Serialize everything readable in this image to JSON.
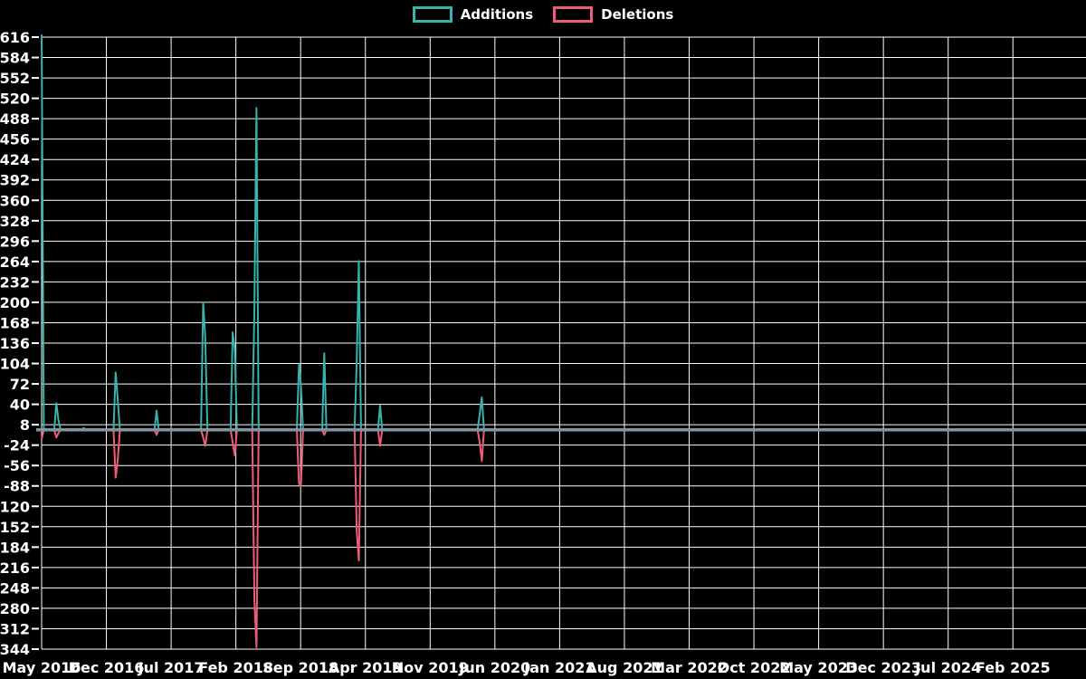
{
  "legend": {
    "items": [
      {
        "label": "Additions",
        "color": "#35b3ac"
      },
      {
        "label": "Deletions",
        "color": "#f05c78"
      }
    ]
  },
  "chart_data": {
    "type": "line",
    "title": "",
    "x_axis": {
      "tick_labels": [
        "May 2016",
        "Dec 2016",
        "Jul 2017",
        "Feb 2018",
        "Sep 2018",
        "Apr 2019",
        "Nov 2019",
        "Jun 2020",
        "Jan 2021",
        "Aug 2021",
        "Mar 2022",
        "Oct 2022",
        "May 2023",
        "Dec 2023",
        "Jul 2024",
        "Feb 2025"
      ],
      "start_month": "2016-05",
      "months_per_tick": 7
    },
    "y_axis": {
      "min": -344,
      "max": 616,
      "tick_step": 32,
      "ticks": [
        616,
        584,
        552,
        520,
        488,
        456,
        424,
        392,
        360,
        328,
        296,
        264,
        232,
        200,
        168,
        136,
        104,
        72,
        40,
        8,
        -24,
        -56,
        -88,
        -120,
        -152,
        -184,
        -216,
        -248,
        -280,
        -312,
        -344
      ]
    },
    "series": [
      {
        "name": "Additions",
        "color": "#35b3ac"
      },
      {
        "name": "Deletions",
        "color": "#f05c78"
      }
    ],
    "baseline": 0,
    "weekly_points_note": "weeks not listed are 0 additions / 0 deletions",
    "weekly_points": [
      {
        "date": "2016-05-01",
        "additions": 620,
        "deletions": -15
      },
      {
        "date": "2016-06-19",
        "additions": 42,
        "deletions": -12
      },
      {
        "date": "2016-06-26",
        "additions": 15,
        "deletions": -5
      },
      {
        "date": "2016-09-18",
        "additions": 3,
        "deletions": 0
      },
      {
        "date": "2017-01-01",
        "additions": 90,
        "deletions": -75
      },
      {
        "date": "2017-01-08",
        "additions": 48,
        "deletions": -47
      },
      {
        "date": "2017-05-14",
        "additions": 30,
        "deletions": -8
      },
      {
        "date": "2017-10-15",
        "additions": 200,
        "deletions": -12
      },
      {
        "date": "2017-10-22",
        "additions": 145,
        "deletions": -25
      },
      {
        "date": "2018-01-21",
        "additions": 153,
        "deletions": -20
      },
      {
        "date": "2018-01-28",
        "additions": 125,
        "deletions": -40
      },
      {
        "date": "2018-04-01",
        "additions": 190,
        "deletions": -267
      },
      {
        "date": "2018-04-08",
        "additions": 505,
        "deletions": -341
      },
      {
        "date": "2018-08-26",
        "additions": 103,
        "deletions": -85
      },
      {
        "date": "2018-09-02",
        "additions": 70,
        "deletions": -88
      },
      {
        "date": "2018-11-18",
        "additions": 120,
        "deletions": -8
      },
      {
        "date": "2019-03-03",
        "additions": 110,
        "deletions": -160
      },
      {
        "date": "2019-03-10",
        "additions": 265,
        "deletions": -205
      },
      {
        "date": "2019-05-19",
        "additions": 38,
        "deletions": -25
      },
      {
        "date": "2020-04-12",
        "additions": 25,
        "deletions": -20
      },
      {
        "date": "2020-04-19",
        "additions": 51,
        "deletions": -49
      }
    ]
  },
  "style": {
    "background": "#000000",
    "grid_color": "#ffffff",
    "zero_line_color": "#7e96a2",
    "text_color": "#ffffff"
  }
}
